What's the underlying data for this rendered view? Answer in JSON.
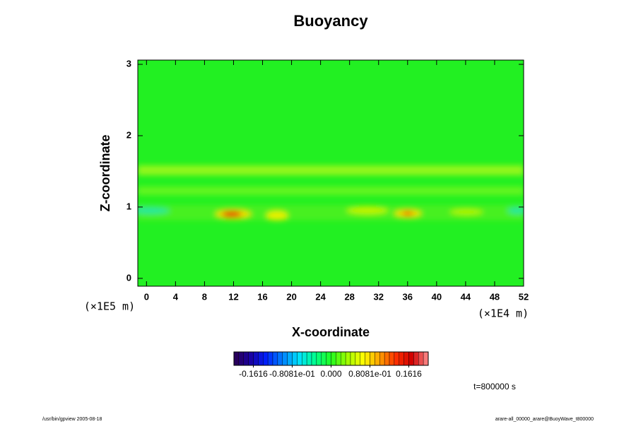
{
  "chart_data": {
    "type": "heatmap",
    "title": "Buoyancy",
    "x_label": "X-coordinate",
    "y_label": "Z-coordinate",
    "x_unit": "(×1E4 m)",
    "y_unit": "(×1E5 m)",
    "xlim": [
      -1.2,
      52
    ],
    "ylim": [
      -0.11,
      3.06
    ],
    "xticks": [
      0,
      4,
      8,
      12,
      16,
      20,
      24,
      28,
      32,
      36,
      40,
      44,
      48,
      52
    ],
    "yticks": [
      0,
      1,
      2,
      3
    ],
    "clim": [
      -0.202,
      0.202
    ],
    "cticks": [
      {
        "value": -0.1616,
        "label": "-0.1616"
      },
      {
        "value": -0.08081,
        "label": "-0.8081e-01"
      },
      {
        "value": 0,
        "label": "0.000"
      },
      {
        "value": 0.08081,
        "label": "0.8081e-01"
      },
      {
        "value": 0.1616,
        "label": "0.1616"
      }
    ],
    "colormap": [
      "#2a0050",
      "#1a00a0",
      "#0020ff",
      "#0080ff",
      "#00e0ff",
      "#00ff90",
      "#20ff20",
      "#a0ff00",
      "#ffff00",
      "#ffa000",
      "#ff3000",
      "#d00000",
      "#ff9090"
    ],
    "time_label": "t=800000 s",
    "footer_left": "/usr/bin/gpview 2005-08-18",
    "footer_right": "arare-all_00000_arare@BuoyWave_t800000"
  }
}
